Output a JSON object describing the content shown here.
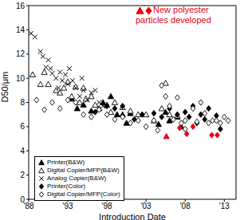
{
  "chart_data": {
    "type": "scatter",
    "x_label": "Introduction Date",
    "y_label": "D50/μm",
    "xlim": [
      1988,
      2014.5
    ],
    "xticks": [
      {
        "value": 1988,
        "label": "'88"
      },
      {
        "value": 1993,
        "label": "'93"
      },
      {
        "value": 1998,
        "label": "'98"
      },
      {
        "value": 2003,
        "label": "'03"
      },
      {
        "value": 2008,
        "label": "'08"
      },
      {
        "value": 2013,
        "label": "'13"
      }
    ],
    "ylim": [
      0,
      16
    ],
    "yticks": [
      0,
      2,
      4,
      6,
      8,
      10,
      12,
      14,
      16
    ],
    "legend": "lower left",
    "annotations": [
      {
        "text": "New polyester particles developed",
        "color": "#e60012"
      }
    ],
    "series": [
      {
        "name": "Printer(B&W)",
        "color": "#000000",
        "marker": "triangle",
        "x": [
          1993.5,
          1994.2,
          1995,
          1996,
          1997.5,
          1998.5,
          1999.3,
          2000,
          2000.5,
          2001,
          2004.6,
          2005.5,
          2006,
          2007,
          2007.5
        ],
        "values": [
          8.3,
          7.5,
          7.8,
          7.3,
          8.0,
          8.5,
          7.0,
          7.0,
          6.3,
          7.1,
          6.2,
          7.2,
          6.5,
          6.8,
          6.0
        ]
      },
      {
        "name": "Digital Copier/MFP(B&W)",
        "color": "#000000",
        "marker": "open_triangle",
        "x": [
          1988.5,
          1989.5,
          1990,
          1990.5,
          1991.5,
          1992,
          1992.5,
          1993,
          1993.5,
          1994,
          1994.5,
          1995,
          1995.3,
          1996,
          1996.5,
          1997,
          1998,
          1998.5,
          1999,
          2000,
          2001,
          2002,
          2003,
          2004,
          2005,
          2005.5,
          2006,
          2007
        ],
        "values": [
          10.3,
          9.5,
          10.5,
          9.5,
          9.0,
          8.8,
          9.2,
          9.7,
          8.5,
          9.3,
          8.0,
          9.2,
          8.3,
          8.5,
          7.8,
          7.5,
          7.8,
          7.2,
          8.0,
          7.6,
          7.3,
          7.0,
          7.0,
          6.5,
          7.5,
          9.6,
          7.0,
          6.9
        ]
      },
      {
        "name": "Analog Copier(B&W)",
        "color": "#000000",
        "marker": "x",
        "x": [
          1988.3,
          1988.8,
          1989.5,
          1989.8,
          1990.2,
          1990.5,
          1990.8,
          1991,
          1991.5,
          1991.8,
          1992,
          1992.3,
          1992.7,
          1993,
          1993.2,
          1993.6,
          1994,
          1994.5,
          1994.8,
          1995,
          1995.5,
          1996,
          1996.5,
          1997,
          1997.5
        ],
        "values": [
          13.7,
          13.4,
          12.2,
          11.8,
          10.9,
          11.5,
          10.8,
          10.4,
          10.0,
          9.2,
          10.5,
          9.8,
          10.3,
          9.5,
          10.8,
          9.8,
          9.2,
          8.5,
          10.0,
          9.0,
          8.2,
          8.8,
          9.0,
          8.0,
          7.7
        ]
      },
      {
        "name": "Printer(Color)",
        "color": "#000000",
        "marker": "diamond",
        "x": [
          1996.5,
          1998,
          1999,
          2000,
          2001.5,
          2002.5,
          2004,
          2005,
          2006,
          2007,
          2008,
          2008.5,
          2009,
          2009.5,
          2010,
          2010.5,
          2011,
          2012,
          2012.5
        ],
        "values": [
          7.2,
          7.7,
          7.5,
          7.7,
          6.6,
          7.0,
          7.1,
          6.8,
          7.5,
          7.0,
          7.2,
          6.8,
          7.7,
          6.3,
          7.0,
          6.6,
          7.5,
          6.9,
          5.8
        ]
      },
      {
        "name": "Digital Copier/MFP(Color)",
        "color": "#000000",
        "marker": "open_diamond",
        "x": [
          1989,
          1990,
          1991,
          1992,
          1993,
          1994,
          1995,
          1996,
          1997,
          1998,
          1999,
          2000,
          2001,
          2002,
          2003,
          2004,
          2004.5,
          2005,
          2005.5,
          2006,
          2006.5,
          2007,
          2007.5,
          2008,
          2008,
          2009,
          2009.5,
          2010,
          2010.5,
          2011,
          2011.5,
          2012,
          2012.5,
          2013,
          2013.5
        ],
        "values": [
          8.2,
          7.4,
          8.0,
          7.5,
          8.2,
          8.0,
          7.0,
          6.8,
          7.4,
          7.0,
          6.6,
          6.8,
          6.3,
          6.5,
          6.0,
          6.5,
          5.7,
          9.4,
          8.5,
          7.7,
          6.6,
          8.4,
          6.3,
          6.5,
          5.8,
          7.5,
          6.4,
          8.0,
          7.1,
          6.3,
          6.5,
          6.5,
          6.3,
          6.8,
          6.5
        ]
      },
      {
        "color": "#e60012",
        "marker": "triangle",
        "x": [
          2005.6
        ],
        "values": [
          5.2
        ]
      },
      {
        "color": "#e60012",
        "marker": "diamond",
        "x": [
          2007.3,
          2008.2,
          2009.0,
          2011.4,
          2012.1
        ],
        "values": [
          5.9,
          5.4,
          6.0,
          5.3,
          5.3
        ]
      }
    ]
  }
}
